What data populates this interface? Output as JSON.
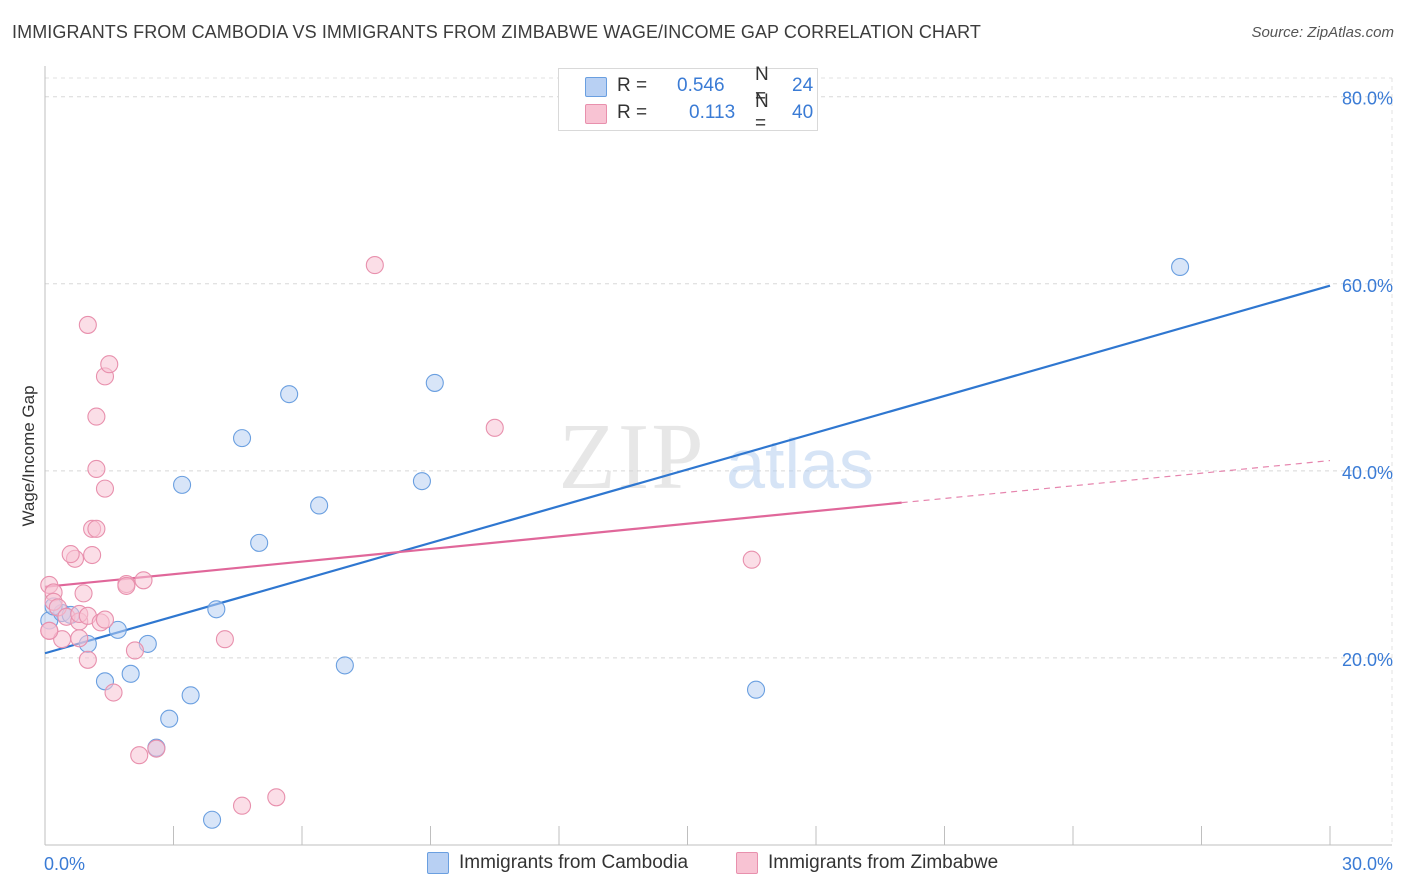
{
  "title": "IMMIGRANTS FROM CAMBODIA VS IMMIGRANTS FROM ZIMBABWE WAGE/INCOME GAP CORRELATION CHART",
  "source": "Source: ZipAtlas.com",
  "watermark": {
    "zip": "ZIP",
    "atlas": "atlas"
  },
  "legend": {
    "r_label": "R =",
    "n_label": "N =",
    "rows": [
      {
        "r": "0.546",
        "n": "24"
      },
      {
        "r": "0.113",
        "n": "40"
      }
    ]
  },
  "chart_data": {
    "type": "scatter",
    "title": "IMMIGRANTS FROM CAMBODIA VS IMMIGRANTS FROM ZIMBABWE WAGE/INCOME GAP CORRELATION CHART",
    "xlabel": "",
    "ylabel": "Wage/Income Gap",
    "xlim": [
      0,
      30
    ],
    "ylim": [
      0,
      82
    ],
    "x_tick_labels": [
      "0.0%",
      "30.0%"
    ],
    "y_ticks": [
      20,
      40,
      60,
      80
    ],
    "y_tick_labels": [
      "20.0%",
      "40.0%",
      "60.0%",
      "80.0%"
    ],
    "grid": true,
    "legend_position": "bottom",
    "series": [
      {
        "name": "Immigrants from Cambodia",
        "color": "#6a9fe0",
        "fill": "#b8d0f3",
        "r": 0.546,
        "n": 24,
        "points": [
          [
            0.1,
            24.0
          ],
          [
            0.4,
            24.8
          ],
          [
            0.6,
            24.6
          ],
          [
            1.0,
            21.5
          ],
          [
            1.4,
            17.5
          ],
          [
            1.7,
            23.0
          ],
          [
            2.0,
            18.3
          ],
          [
            2.4,
            21.5
          ],
          [
            2.9,
            13.5
          ],
          [
            2.6,
            10.4
          ],
          [
            3.2,
            38.5
          ],
          [
            3.4,
            16.0
          ],
          [
            3.9,
            2.7
          ],
          [
            4.0,
            25.2
          ],
          [
            4.6,
            43.5
          ],
          [
            5.0,
            32.3
          ],
          [
            5.7,
            48.2
          ],
          [
            6.4,
            36.3
          ],
          [
            7.0,
            19.2
          ],
          [
            8.8,
            38.9
          ],
          [
            9.1,
            49.4
          ],
          [
            16.6,
            16.6
          ],
          [
            26.5,
            61.8
          ],
          [
            0.2,
            25.5
          ]
        ],
        "trend": {
          "x": [
            0,
            30
          ],
          "y": [
            20.5,
            59.8
          ],
          "style": "solid",
          "color": "#2f77d0"
        }
      },
      {
        "name": "Immigrants from Zimbabwe",
        "color": "#e890ad",
        "fill": "#f8c3d3",
        "r": 0.113,
        "n": 40,
        "points": [
          [
            0.1,
            27.8
          ],
          [
            0.2,
            27.0
          ],
          [
            0.2,
            26.0
          ],
          [
            0.3,
            25.4
          ],
          [
            0.1,
            22.9
          ],
          [
            0.4,
            22.0
          ],
          [
            0.5,
            24.4
          ],
          [
            0.7,
            30.6
          ],
          [
            0.6,
            31.1
          ],
          [
            0.8,
            23.9
          ],
          [
            0.8,
            24.7
          ],
          [
            0.8,
            22.1
          ],
          [
            0.9,
            26.9
          ],
          [
            1.0,
            55.6
          ],
          [
            1.0,
            24.5
          ],
          [
            1.1,
            33.8
          ],
          [
            1.1,
            31.0
          ],
          [
            1.0,
            19.8
          ],
          [
            1.2,
            45.8
          ],
          [
            1.2,
            33.8
          ],
          [
            1.3,
            23.8
          ],
          [
            1.2,
            40.2
          ],
          [
            1.4,
            24.1
          ],
          [
            1.4,
            50.1
          ],
          [
            1.4,
            38.1
          ],
          [
            1.5,
            51.4
          ],
          [
            1.6,
            16.3
          ],
          [
            1.9,
            27.9
          ],
          [
            1.9,
            27.7
          ],
          [
            2.1,
            20.8
          ],
          [
            2.3,
            28.3
          ],
          [
            2.2,
            9.6
          ],
          [
            2.6,
            10.3
          ],
          [
            4.2,
            22.0
          ],
          [
            4.6,
            4.2
          ],
          [
            5.4,
            5.1
          ],
          [
            7.7,
            62.0
          ],
          [
            10.5,
            44.6
          ],
          [
            16.5,
            30.5
          ],
          [
            0.1,
            22.9
          ]
        ],
        "trend": {
          "x": [
            0,
            20
          ],
          "y": [
            27.6,
            36.6
          ],
          "style": "solid",
          "color": "#e0679a",
          "extension": {
            "x": [
              20,
              30
            ],
            "y": [
              36.6,
              41.1
            ],
            "style": "dashed"
          }
        }
      }
    ]
  }
}
